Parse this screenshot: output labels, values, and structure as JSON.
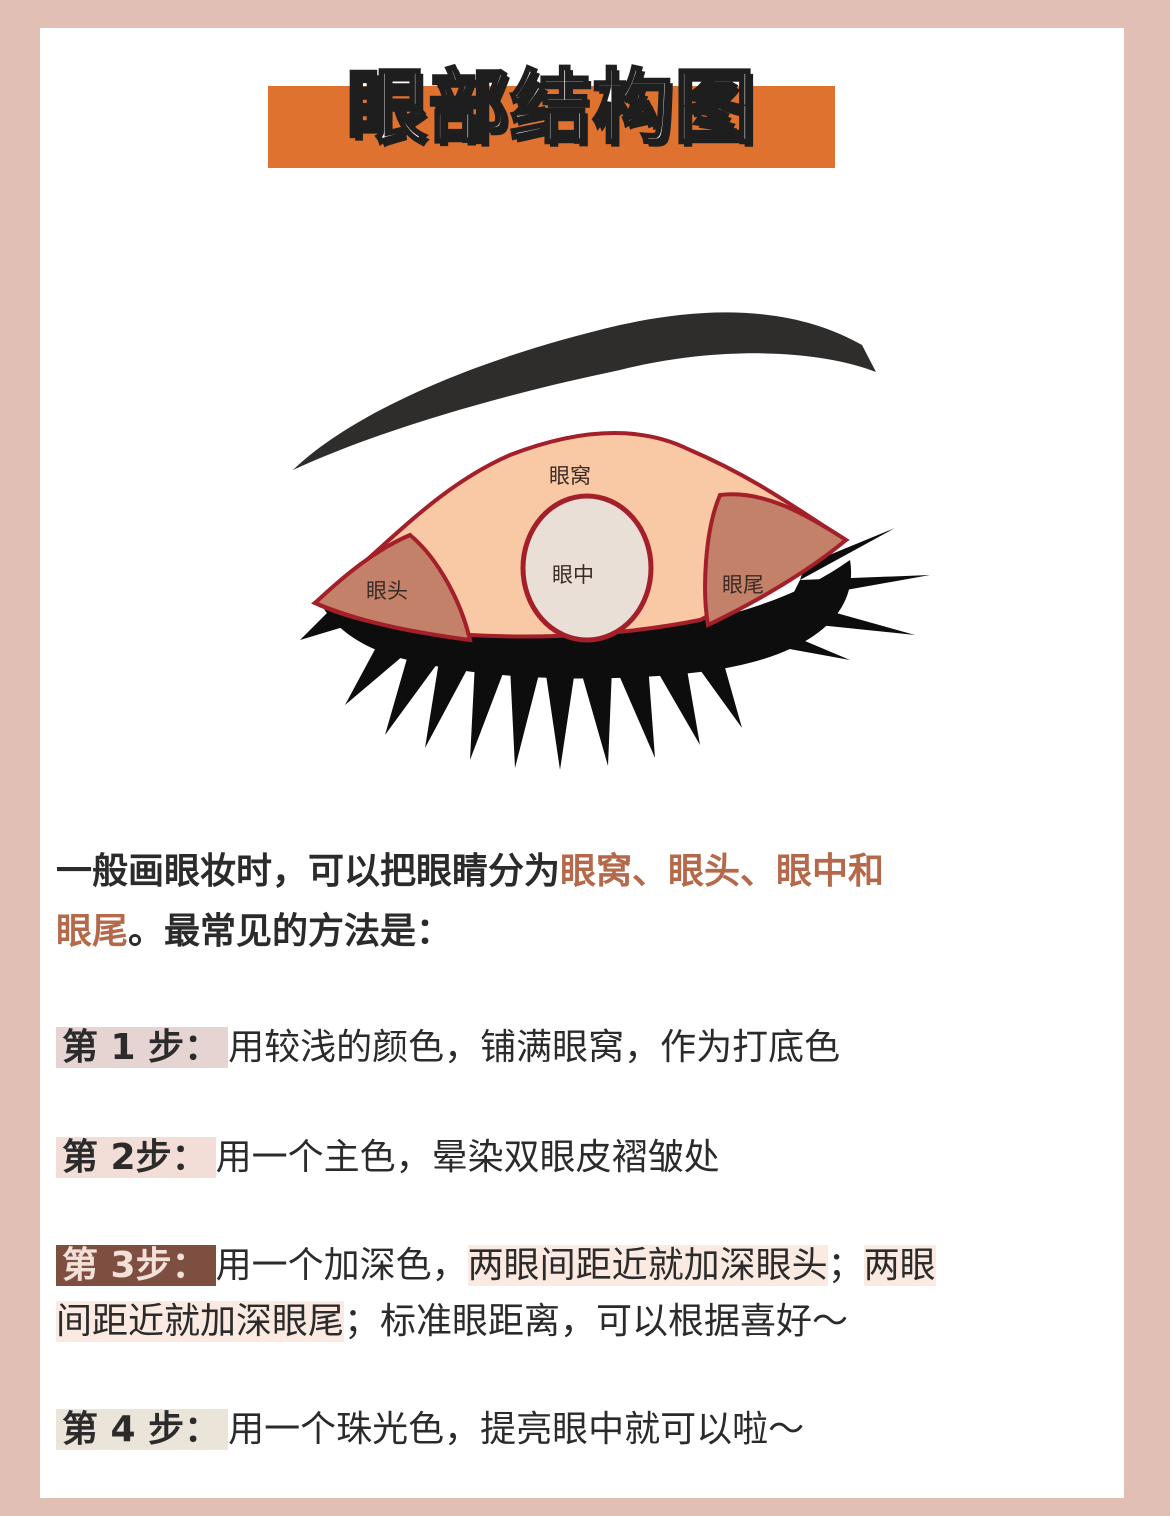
{
  "title": "眼部结构图",
  "diagram": {
    "labels": {
      "socket": "眼窝",
      "inner": "眼头",
      "middle": "眼中",
      "outer": "眼尾"
    },
    "colors": {
      "socket_fill": "#f9c8a4",
      "corner_fill": "#c28168",
      "middle_fill": "#e9dfd7",
      "outline": "#a3202a",
      "brow": "#2f2c2c",
      "lashes": "#0d0d0d"
    }
  },
  "intro": {
    "prefix": "一般画眼妆时，可以把眼睛分为",
    "highlight_a": "眼窝、眼头、眼中和",
    "highlight_b": "眼尾",
    "suffix": "。最常见的方法是："
  },
  "steps": [
    {
      "label": "第 1 步",
      "colon": "：",
      "text": "用较浅的颜色，铺满眼窝，作为打底色"
    },
    {
      "label": "第 2步",
      "colon": "：",
      "text": "用一个主色，晕染双眼皮褶皱处"
    },
    {
      "label": "第 3步",
      "colon": "：",
      "text_a": "用一个加深色，",
      "hl_a": "两眼间距近就加深眼头",
      "sep": "；",
      "hl_b_1": "两眼",
      "hl_b_2": "间距近就加深眼尾",
      "text_b": "；标准眼距离，可以根据喜好～"
    },
    {
      "label": "第 4 步",
      "colon": "：",
      "text": "用一个珠光色，提亮眼中就可以啦～"
    }
  ]
}
